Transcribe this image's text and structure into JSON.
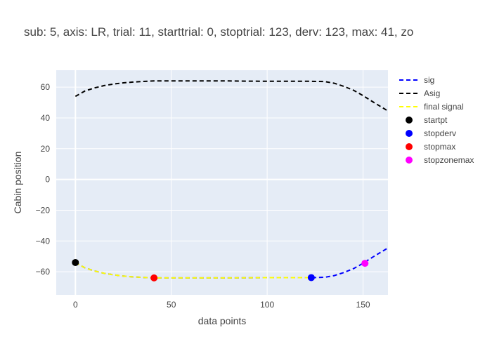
{
  "chart_data": {
    "type": "line",
    "title": "sub: 5, axis: LR, trial: 11, starttrial: 0, stoptrial: 123, derv: 123, max: 41, zo",
    "xlabel": "data points",
    "ylabel": "Cabin position",
    "xlim": [
      -10,
      163
    ],
    "ylim": [
      -75,
      71
    ],
    "xticks": [
      0,
      50,
      100,
      150
    ],
    "yticks": [
      -60,
      -40,
      -20,
      0,
      20,
      40,
      60
    ],
    "grid": true,
    "legend_position": "right",
    "series": [
      {
        "name": "sig",
        "style": "dash",
        "color": "#0000ff",
        "x": [
          0,
          5,
          10,
          15,
          20,
          25,
          30,
          35,
          41,
          50,
          60,
          70,
          80,
          90,
          100,
          110,
          120,
          123,
          130,
          135,
          140,
          145,
          150,
          155,
          163
        ],
        "y": [
          -54,
          -57.5,
          -59.5,
          -61,
          -62,
          -62.8,
          -63.3,
          -63.7,
          -64,
          -64,
          -64,
          -64,
          -64,
          -63.9,
          -63.8,
          -63.8,
          -63.8,
          -63.8,
          -63.6,
          -62.5,
          -60.5,
          -58,
          -54.5,
          -50.5,
          -44.5
        ]
      },
      {
        "name": "Asig",
        "style": "dash",
        "color": "#000000",
        "x": [
          0,
          5,
          10,
          15,
          20,
          25,
          30,
          35,
          41,
          50,
          60,
          70,
          80,
          90,
          100,
          110,
          120,
          123,
          130,
          135,
          140,
          145,
          150,
          155,
          163
        ],
        "y": [
          54,
          57.5,
          59.5,
          61,
          62,
          62.8,
          63.3,
          63.7,
          64,
          64,
          64,
          64,
          64,
          63.9,
          63.8,
          63.8,
          63.8,
          63.8,
          63.6,
          62.5,
          60.5,
          58,
          54.5,
          50.5,
          44.5
        ]
      },
      {
        "name": "final signal",
        "style": "dash",
        "color": "#ffff00",
        "x": [
          0,
          5,
          10,
          15,
          20,
          25,
          30,
          35,
          41,
          50,
          60,
          70,
          80,
          90,
          100,
          110,
          120,
          123
        ],
        "y": [
          -54,
          -57.5,
          -59.5,
          -61,
          -62,
          -62.8,
          -63.3,
          -63.7,
          -64,
          -64,
          -64,
          -64,
          -64,
          -63.9,
          -63.8,
          -63.8,
          -63.8,
          -63.8
        ]
      }
    ],
    "markers": [
      {
        "name": "startpt",
        "color": "#000000",
        "x": 0,
        "y": -54
      },
      {
        "name": "stopderv",
        "color": "#0000ff",
        "x": 123,
        "y": -63.8
      },
      {
        "name": "stopmax",
        "color": "#ff0000",
        "x": 41,
        "y": -64
      },
      {
        "name": "stopzonemax",
        "color": "#ff00ff",
        "x": 151,
        "y": -54.5
      }
    ]
  }
}
